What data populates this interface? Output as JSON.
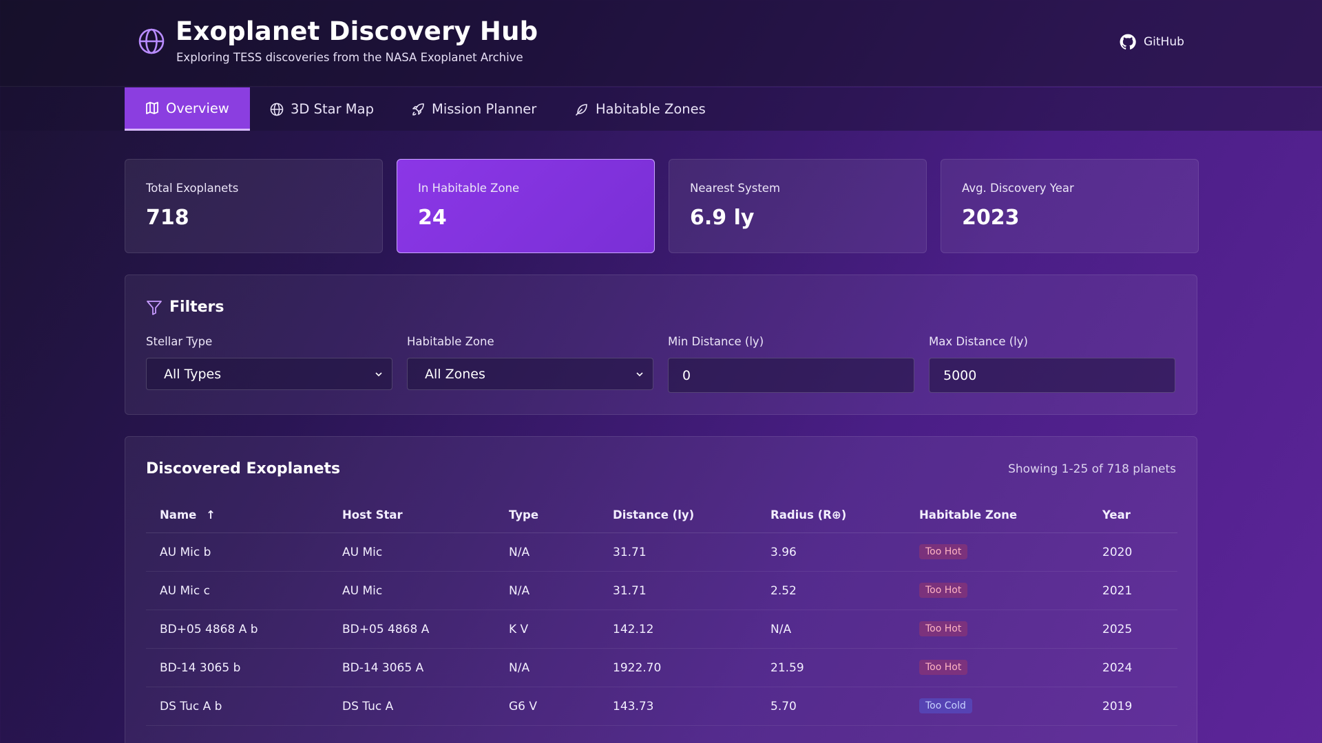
{
  "header": {
    "title": "Exoplanet Discovery Hub",
    "subtitle": "Exploring TESS discoveries from the NASA Exoplanet Archive",
    "logo_icon": "globe-icon",
    "github_label": "GitHub"
  },
  "nav": {
    "tabs": [
      {
        "label": "Overview",
        "icon": "map-icon",
        "active": true
      },
      {
        "label": "3D Star Map",
        "icon": "globe-icon",
        "active": false
      },
      {
        "label": "Mission Planner",
        "icon": "rocket-icon",
        "active": false
      },
      {
        "label": "Habitable Zones",
        "icon": "leaf-icon",
        "active": false
      }
    ]
  },
  "stats": [
    {
      "label": "Total Exoplanets",
      "value": "718"
    },
    {
      "label": "In Habitable Zone",
      "value": "24"
    },
    {
      "label": "Nearest System",
      "value": "6.9 ly"
    },
    {
      "label": "Avg. Discovery Year",
      "value": "2023"
    }
  ],
  "filters": {
    "title": "Filters",
    "stellar_type": {
      "label": "Stellar Type",
      "value": "All Types"
    },
    "habitable_zone": {
      "label": "Habitable Zone",
      "value": "All Zones"
    },
    "min_distance": {
      "label": "Min Distance (ly)",
      "value": "0"
    },
    "max_distance": {
      "label": "Max Distance (ly)",
      "value": "5000"
    }
  },
  "table": {
    "title": "Discovered Exoplanets",
    "count_text": "Showing 1-25 of 718 planets",
    "headers": {
      "name": "Name",
      "sort_arrow": "↑",
      "host": "Host Star",
      "type": "Type",
      "distance": "Distance (ly)",
      "radius": "Radius (R⊕)",
      "zone": "Habitable Zone",
      "year": "Year"
    },
    "rows": [
      {
        "name": "AU Mic b",
        "host": "AU Mic",
        "type": "N/A",
        "distance": "31.71",
        "radius": "3.96",
        "zone": "Too Hot",
        "year": "2020"
      },
      {
        "name": "AU Mic c",
        "host": "AU Mic",
        "type": "N/A",
        "distance": "31.71",
        "radius": "2.52",
        "zone": "Too Hot",
        "year": "2021"
      },
      {
        "name": "BD+05 4868 A b",
        "host": "BD+05 4868 A",
        "type": "K V",
        "distance": "142.12",
        "radius": "N/A",
        "zone": "Too Hot",
        "year": "2025"
      },
      {
        "name": "BD-14 3065 b",
        "host": "BD-14 3065 A",
        "type": "N/A",
        "distance": "1922.70",
        "radius": "21.59",
        "zone": "Too Hot",
        "year": "2024"
      },
      {
        "name": "DS Tuc A b",
        "host": "DS Tuc A",
        "type": "G6 V",
        "distance": "143.73",
        "radius": "5.70",
        "zone": "Too Cold",
        "year": "2019"
      }
    ]
  },
  "colors": {
    "accent": "#8b3ee0",
    "too_hot": "#ffb4c2",
    "too_cold": "#c7d2ff"
  }
}
